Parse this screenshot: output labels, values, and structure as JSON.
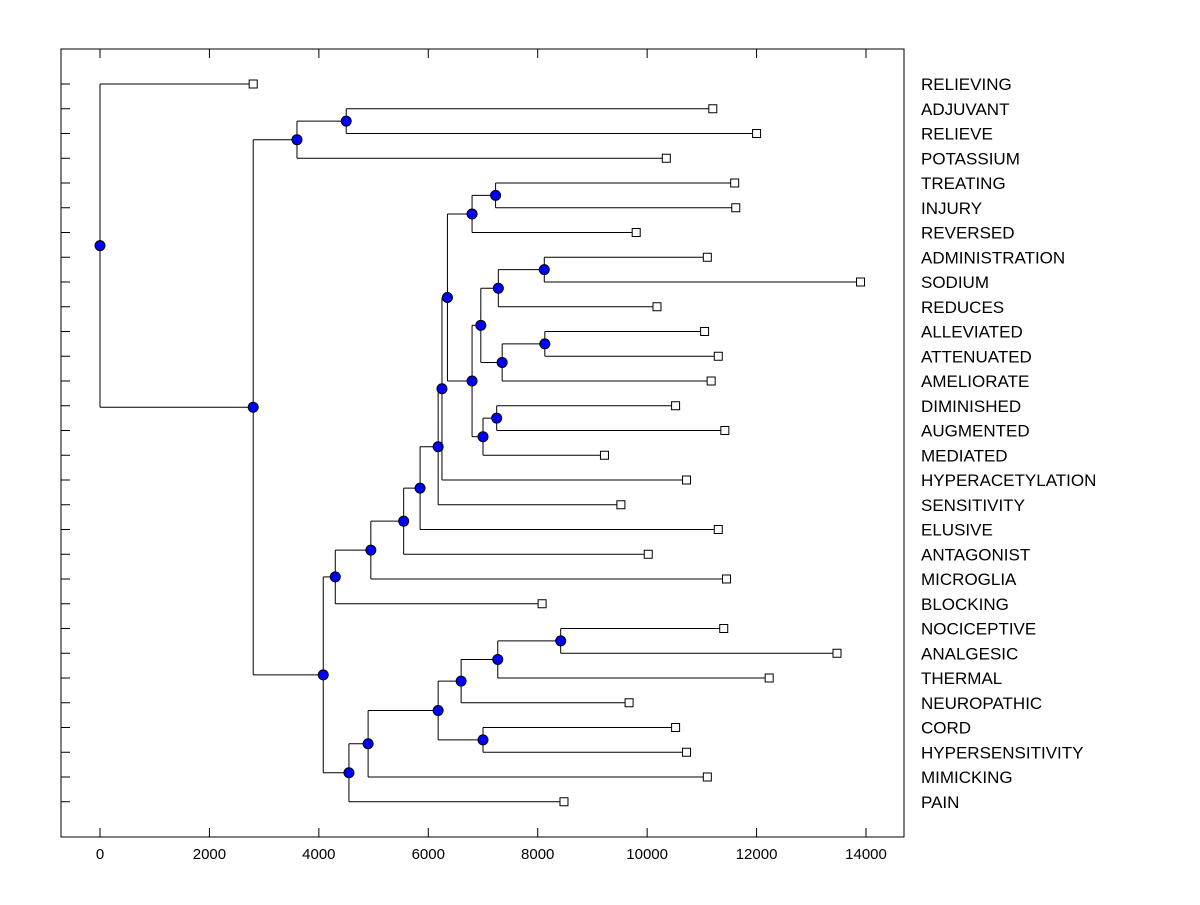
{
  "chart_data": {
    "type": "dendrogram",
    "title": "",
    "xlabel": "",
    "ylabel": "",
    "xlim": [
      -700,
      14600
    ],
    "x_ticks": [
      0,
      2000,
      4000,
      6000,
      8000,
      10000,
      12000,
      14000
    ],
    "x_tick_labels": [
      "0",
      "2000",
      "4000",
      "6000",
      "8000",
      "10000",
      "12000",
      "14000"
    ],
    "grid": false,
    "leaf_labels_position": "right",
    "colors": {
      "internal_node": "#0000ff",
      "leaf_fill": "#ffffff",
      "line": "#000000"
    },
    "leaves": [
      {
        "label": "RELIEVING",
        "x": 2800
      },
      {
        "label": "ADJUVANT",
        "x": 11200
      },
      {
        "label": "RELIEVE",
        "x": 12000
      },
      {
        "label": "POTASSIUM",
        "x": 10350
      },
      {
        "label": "TREATING",
        "x": 11600
      },
      {
        "label": "INJURY",
        "x": 11620
      },
      {
        "label": "REVERSED",
        "x": 9800
      },
      {
        "label": "ADMINISTRATION",
        "x": 11100
      },
      {
        "label": "SODIUM",
        "x": 13900
      },
      {
        "label": "REDUCES",
        "x": 10180
      },
      {
        "label": "ALLEVIATED",
        "x": 11050
      },
      {
        "label": "ATTENUATED",
        "x": 11300
      },
      {
        "label": "AMELIORATE",
        "x": 11170
      },
      {
        "label": "DIMINISHED",
        "x": 10520
      },
      {
        "label": "AUGMENTED",
        "x": 11420
      },
      {
        "label": "MEDIATED",
        "x": 9220
      },
      {
        "label": "HYPERACETYLATION",
        "x": 10720
      },
      {
        "label": "SENSITIVITY",
        "x": 9520
      },
      {
        "label": "ELUSIVE",
        "x": 11300
      },
      {
        "label": "ANTAGONIST",
        "x": 10020
      },
      {
        "label": "MICROGLIA",
        "x": 11450
      },
      {
        "label": "BLOCKING",
        "x": 8080
      },
      {
        "label": "NOCICEPTIVE",
        "x": 11400
      },
      {
        "label": "ANALGESIC",
        "x": 13470
      },
      {
        "label": "THERMAL",
        "x": 12230
      },
      {
        "label": "NEUROPATHIC",
        "x": 9670
      },
      {
        "label": "CORD",
        "x": 10520
      },
      {
        "label": "HYPERSENSITIVITY",
        "x": 10720
      },
      {
        "label": "MIMICKING",
        "x": 11100
      },
      {
        "label": "PAIN",
        "x": 8480
      }
    ],
    "merges": [
      {
        "id": "n_adj_rel",
        "x": 4500,
        "children": [
          "ADJUVANT",
          "RELIEVE"
        ]
      },
      {
        "id": "n_top",
        "x": 3600,
        "children": [
          "n_adj_rel",
          "POTASSIUM"
        ]
      },
      {
        "id": "n_treat_inj",
        "x": 7230,
        "children": [
          "TREATING",
          "INJURY"
        ]
      },
      {
        "id": "n_rev",
        "x": 6800,
        "children": [
          "n_treat_inj",
          "REVERSED"
        ]
      },
      {
        "id": "n_adm_sod",
        "x": 8120,
        "children": [
          "ADMINISTRATION",
          "SODIUM"
        ]
      },
      {
        "id": "n_red",
        "x": 7280,
        "children": [
          "n_adm_sod",
          "REDUCES"
        ]
      },
      {
        "id": "n_all_att",
        "x": 8130,
        "children": [
          "ALLEVIATED",
          "ATTENUATED"
        ]
      },
      {
        "id": "n_ame",
        "x": 7350,
        "children": [
          "n_all_att",
          "AMELIORATE"
        ]
      },
      {
        "id": "n_red_ame",
        "x": 6960,
        "children": [
          "n_red",
          "n_ame"
        ]
      },
      {
        "id": "n_dim_aug",
        "x": 7250,
        "children": [
          "DIMINISHED",
          "AUGMENTED"
        ]
      },
      {
        "id": "n_med",
        "x": 7000,
        "children": [
          "n_dim_aug",
          "MEDIATED"
        ]
      },
      {
        "id": "n_mid",
        "x": 6800,
        "children": [
          "n_red_ame",
          "n_med"
        ]
      },
      {
        "id": "n_rev_mid",
        "x": 6350,
        "children": [
          "n_rev",
          "n_mid"
        ]
      },
      {
        "id": "n_hyperac",
        "x": 6250,
        "children": [
          "n_rev_mid",
          "HYPERACETYLATION"
        ]
      },
      {
        "id": "n_sens",
        "x": 6180,
        "children": [
          "n_hyperac",
          "SENSITIVITY"
        ]
      },
      {
        "id": "n_elus",
        "x": 5850,
        "children": [
          "n_sens",
          "ELUSIVE"
        ]
      },
      {
        "id": "n_antag",
        "x": 5550,
        "children": [
          "n_elus",
          "ANTAGONIST"
        ]
      },
      {
        "id": "n_micro",
        "x": 4950,
        "children": [
          "n_antag",
          "MICROGLIA"
        ]
      },
      {
        "id": "n_block",
        "x": 4300,
        "children": [
          "n_micro",
          "BLOCKING"
        ]
      },
      {
        "id": "n_noc_ana",
        "x": 8420,
        "children": [
          "NOCICEPTIVE",
          "ANALGESIC"
        ]
      },
      {
        "id": "n_therm",
        "x": 7270,
        "children": [
          "n_noc_ana",
          "THERMAL"
        ]
      },
      {
        "id": "n_neuro",
        "x": 6600,
        "children": [
          "n_therm",
          "NEUROPATHIC"
        ]
      },
      {
        "id": "n_cord_hyp",
        "x": 7000,
        "children": [
          "CORD",
          "HYPERSENSITIVITY"
        ]
      },
      {
        "id": "n_pain_mid",
        "x": 6180,
        "children": [
          "n_neuro",
          "n_cord_hyp"
        ]
      },
      {
        "id": "n_mimic",
        "x": 4900,
        "children": [
          "n_pain_mid",
          "MIMICKING"
        ]
      },
      {
        "id": "n_pain",
        "x": 4550,
        "children": [
          "n_mimic",
          "PAIN"
        ]
      },
      {
        "id": "n_lower",
        "x": 4080,
        "children": [
          "n_block",
          "n_pain"
        ]
      },
      {
        "id": "n_main",
        "x": 2800,
        "children": [
          "n_top",
          "n_lower"
        ]
      },
      {
        "id": "root",
        "x": 0,
        "children": [
          "RELIEVING",
          "n_main"
        ]
      }
    ]
  }
}
